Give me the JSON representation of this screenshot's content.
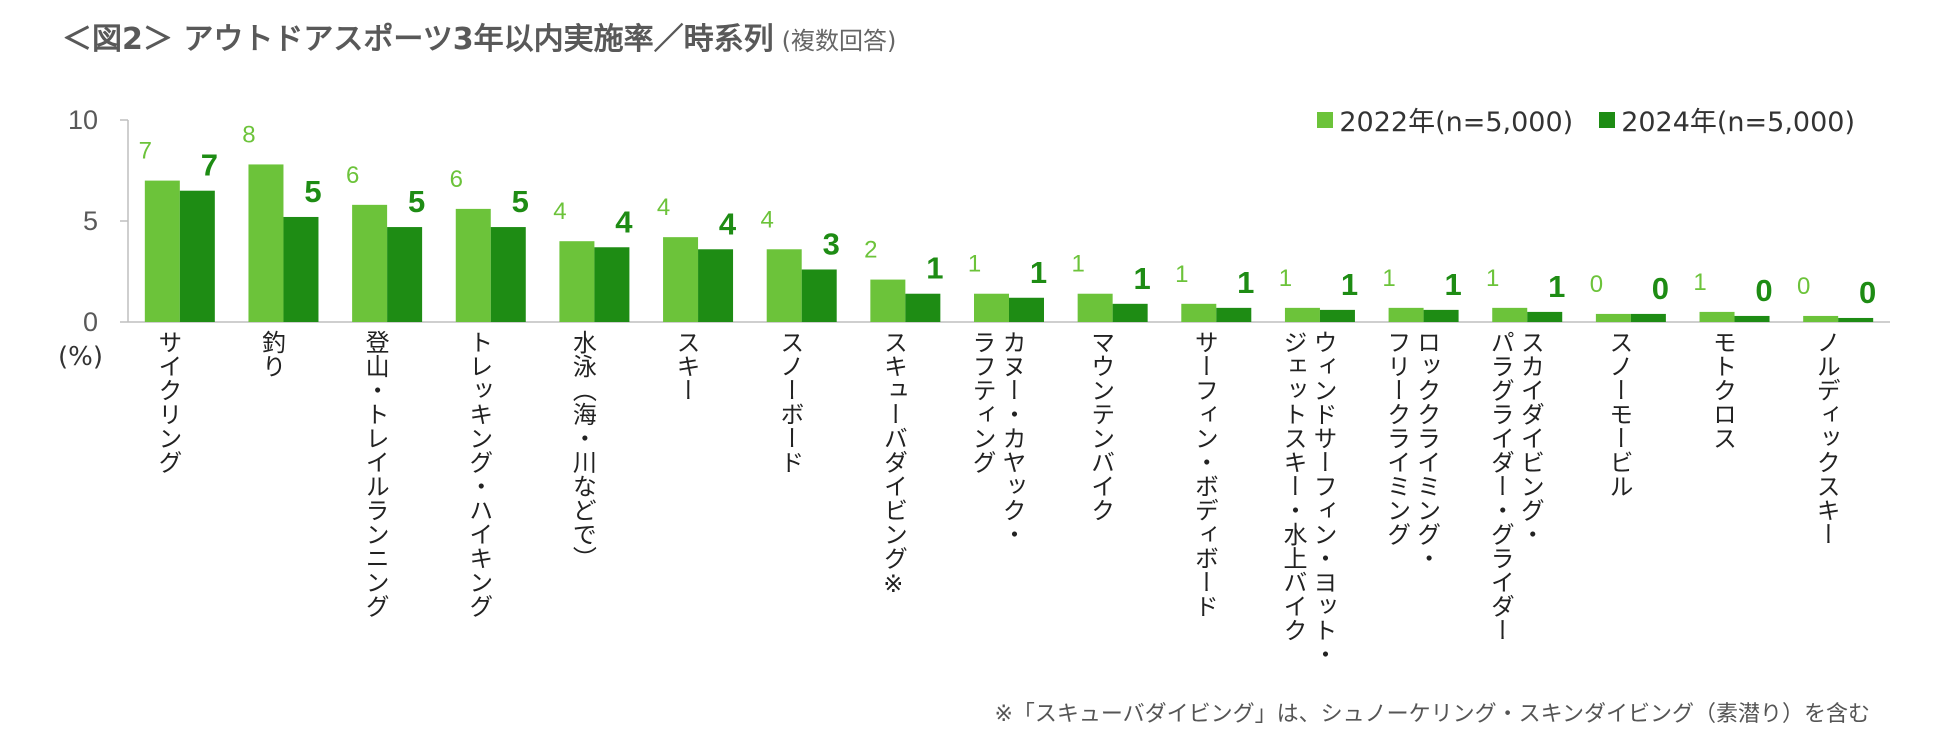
{
  "title": "＜図2＞ アウトドアスポーツ3年以内実施率／時系列",
  "subtitle": "(複数回答)",
  "unit_label": "(%)",
  "footnote": "※「スキューバダイビング」は、シュノーケリング・スキンダイビング（素潜り）を含む",
  "colors": {
    "series_2022": "#6cc33a",
    "series_2024": "#1e8c14",
    "axis": "#bfbfbf",
    "tick": "#595959"
  },
  "chart_data": {
    "type": "bar",
    "title": "＜図2＞ アウトドアスポーツ3年以内実施率／時系列",
    "ylabel": "(%)",
    "ylim": [
      0,
      10
    ],
    "yticks": [
      0,
      5,
      10
    ],
    "legend_position": "top-right",
    "categories": [
      [
        "サイクリング"
      ],
      [
        "釣り"
      ],
      [
        "登山・トレイルランニング"
      ],
      [
        "トレッキング・ハイキング"
      ],
      [
        "水泳（海・川などで）"
      ],
      [
        "スキー"
      ],
      [
        "スノーボード"
      ],
      [
        "スキューバダイビング※"
      ],
      [
        "カヌー・カヤック・",
        "ラフティング"
      ],
      [
        "マウンテンバイク"
      ],
      [
        "サーフィン・ボディボード"
      ],
      [
        "ウィンドサーフィン・ヨット・",
        "ジェットスキー・水上バイク"
      ],
      [
        "ロッククライミング・",
        "フリークライミング"
      ],
      [
        "スカイダイビング・",
        "パラグライダー・グライダー"
      ],
      [
        "スノーモービル"
      ],
      [
        "モトクロス"
      ],
      [
        "ノルディックスキー"
      ]
    ],
    "series": [
      {
        "name": "2022年(n=5,000)",
        "values": [
          7.0,
          7.8,
          5.8,
          5.6,
          4.0,
          4.2,
          3.6,
          2.1,
          1.4,
          1.4,
          0.9,
          0.7,
          0.7,
          0.7,
          0.4,
          0.5,
          0.3
        ],
        "labels": [
          "7",
          "8",
          "6",
          "6",
          "4",
          "4",
          "4",
          "2",
          "1",
          "1",
          "1",
          "1",
          "1",
          "1",
          "0",
          "1",
          "0"
        ]
      },
      {
        "name": "2024年(n=5,000)",
        "values": [
          6.5,
          5.2,
          4.7,
          4.7,
          3.7,
          3.6,
          2.6,
          1.4,
          1.2,
          0.9,
          0.7,
          0.6,
          0.6,
          0.5,
          0.4,
          0.3,
          0.2
        ],
        "labels": [
          "7",
          "5",
          "5",
          "5",
          "4",
          "4",
          "3",
          "1",
          "1",
          "1",
          "1",
          "1",
          "1",
          "1",
          "0",
          "0",
          "0"
        ]
      }
    ]
  }
}
